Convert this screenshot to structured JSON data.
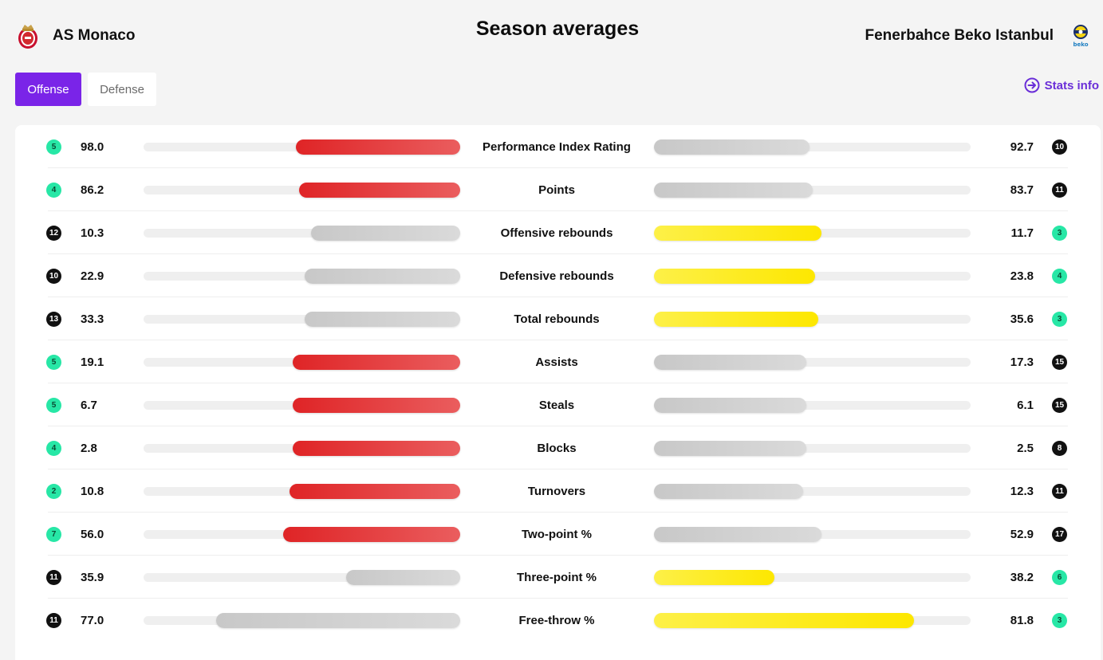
{
  "page_title": "Season averages",
  "home_team": {
    "name": "AS Monaco",
    "logo": "as-monaco-crest-icon"
  },
  "away_team": {
    "name": "Fenerbahce Beko Istanbul",
    "logo": "fenerbahce-beko-crest-icon",
    "logo_text": "beko"
  },
  "tabs": {
    "offense": "Offense",
    "defense": "Defense",
    "active": "offense"
  },
  "stats_info": {
    "label": "Stats info",
    "icon": "arrow-right-circle-icon"
  },
  "colors": {
    "accent": "#7a24e8",
    "home_leader_bar": "#e0282a",
    "away_leader_bar": "#fde700",
    "neutral_bar": "#cccccc",
    "rank_top": "#27e7a6",
    "rank_low": "#111111"
  },
  "stats": [
    {
      "label": "Performance Index Rating",
      "home_value": "98.0",
      "home_rank": "5",
      "home_rank_top": true,
      "away_value": "92.7",
      "away_rank": "10",
      "away_rank_top": false,
      "home_fill": 0.52,
      "away_fill": 0.49,
      "leader": "home"
    },
    {
      "label": "Points",
      "home_value": "86.2",
      "home_rank": "4",
      "home_rank_top": true,
      "away_value": "83.7",
      "away_rank": "11",
      "away_rank_top": false,
      "home_fill": 0.51,
      "away_fill": 0.5,
      "leader": "home"
    },
    {
      "label": "Offensive rebounds",
      "home_value": "10.3",
      "home_rank": "12",
      "home_rank_top": false,
      "away_value": "11.7",
      "away_rank": "3",
      "away_rank_top": true,
      "home_fill": 0.47,
      "away_fill": 0.53,
      "leader": "away"
    },
    {
      "label": "Defensive rebounds",
      "home_value": "22.9",
      "home_rank": "10",
      "home_rank_top": false,
      "away_value": "23.8",
      "away_rank": "4",
      "away_rank_top": true,
      "home_fill": 0.49,
      "away_fill": 0.51,
      "leader": "away"
    },
    {
      "label": "Total rebounds",
      "home_value": "33.3",
      "home_rank": "13",
      "home_rank_top": false,
      "away_value": "35.6",
      "away_rank": "3",
      "away_rank_top": true,
      "home_fill": 0.49,
      "away_fill": 0.52,
      "leader": "away"
    },
    {
      "label": "Assists",
      "home_value": "19.1",
      "home_rank": "5",
      "home_rank_top": true,
      "away_value": "17.3",
      "away_rank": "15",
      "away_rank_top": false,
      "home_fill": 0.53,
      "away_fill": 0.48,
      "leader": "home"
    },
    {
      "label": "Steals",
      "home_value": "6.7",
      "home_rank": "5",
      "home_rank_top": true,
      "away_value": "6.1",
      "away_rank": "15",
      "away_rank_top": false,
      "home_fill": 0.53,
      "away_fill": 0.48,
      "leader": "home"
    },
    {
      "label": "Blocks",
      "home_value": "2.8",
      "home_rank": "4",
      "home_rank_top": true,
      "away_value": "2.5",
      "away_rank": "8",
      "away_rank_top": false,
      "home_fill": 0.53,
      "away_fill": 0.48,
      "leader": "home"
    },
    {
      "label": "Turnovers",
      "home_value": "10.8",
      "home_rank": "2",
      "home_rank_top": true,
      "away_value": "12.3",
      "away_rank": "11",
      "away_rank_top": false,
      "home_fill": 0.54,
      "away_fill": 0.47,
      "leader": "home"
    },
    {
      "label": "Two-point %",
      "home_value": "56.0",
      "home_rank": "7",
      "home_rank_top": true,
      "away_value": "52.9",
      "away_rank": "17",
      "away_rank_top": false,
      "home_fill": 0.56,
      "away_fill": 0.53,
      "leader": "home"
    },
    {
      "label": "Three-point %",
      "home_value": "35.9",
      "home_rank": "11",
      "home_rank_top": false,
      "away_value": "38.2",
      "away_rank": "6",
      "away_rank_top": true,
      "home_fill": 0.36,
      "away_fill": 0.38,
      "leader": "away"
    },
    {
      "label": "Free-throw %",
      "home_value": "77.0",
      "home_rank": "11",
      "home_rank_top": false,
      "away_value": "81.8",
      "away_rank": "3",
      "away_rank_top": true,
      "home_fill": 0.77,
      "away_fill": 0.82,
      "leader": "away"
    }
  ]
}
